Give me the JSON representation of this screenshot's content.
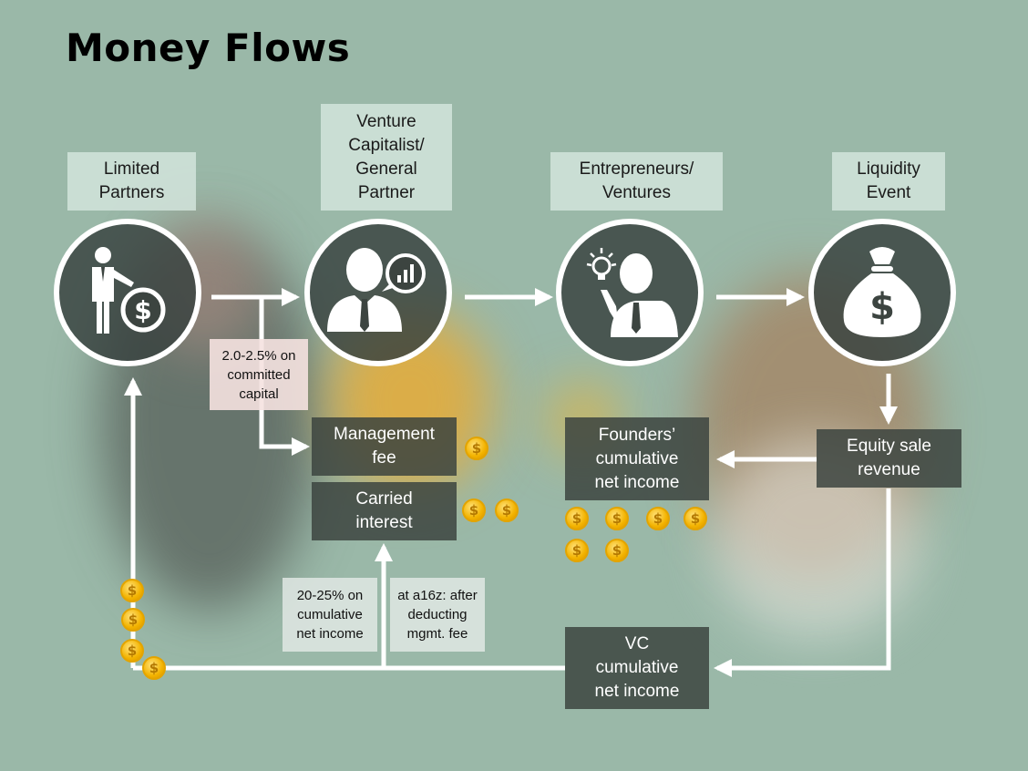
{
  "title": "Money Flows",
  "roles": [
    {
      "label": "Limited\nPartners"
    },
    {
      "label": "Venture\nCapitalist/\nGeneral\nPartner"
    },
    {
      "label": "Entrepreneurs/\nVentures"
    },
    {
      "label": "Liquidity\nEvent"
    }
  ],
  "icons": [
    "investor-with-coin-icon",
    "manager-with-chart-icon",
    "entrepreneur-with-idea-icon",
    "money-bag-icon"
  ],
  "money_bag_symbol": "$",
  "coin_symbol": "$",
  "boxes": {
    "management_fee": "Management\nfee",
    "carried_interest": "Carried\ninterest",
    "founders_income": "Founders’\ncumulative\nnet income",
    "equity_sale": "Equity sale\nrevenue",
    "vc_income": "VC\ncumulative\nnet income"
  },
  "notes": {
    "fee_rate": "2.0-2.5% on\ncommitted\ncapital",
    "carry_rate": "20-25% on\ncumulative\nnet income",
    "a16z": "at a16z: after\ndeducting\nmgmt. fee"
  },
  "colors": {
    "background": "#9ab8a8",
    "node_fill": "#3c4440",
    "arrow": "#ffffff",
    "coin": "#f3b300"
  }
}
